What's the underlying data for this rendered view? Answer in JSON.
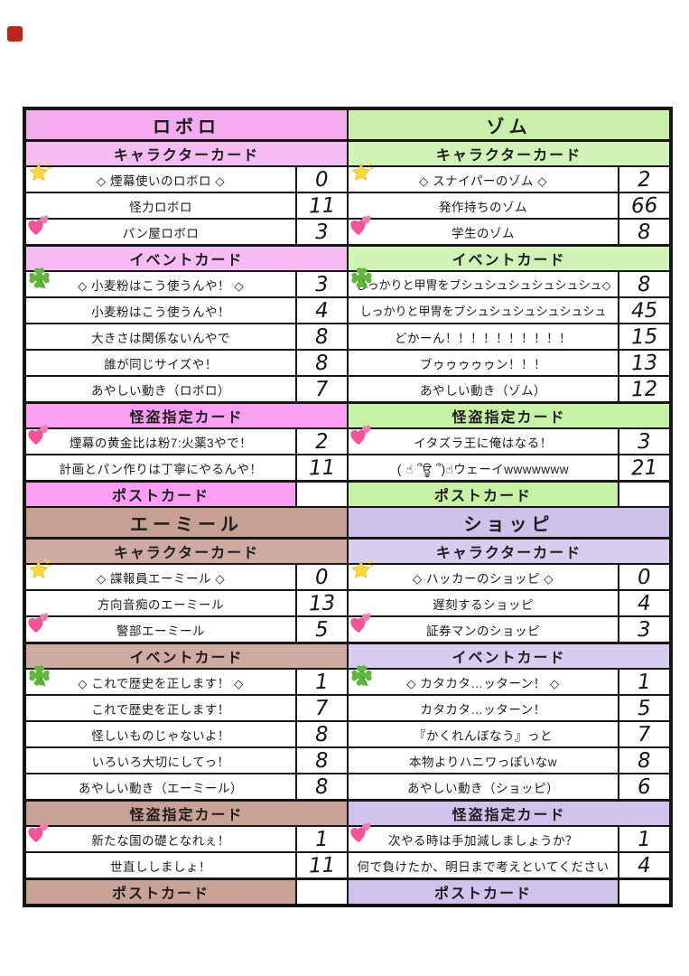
{
  "page": {
    "marker_color": "#b7271d",
    "border_color": "#141414"
  },
  "blocks": [
    {
      "id": "roboro",
      "title": "ロボロ",
      "colors": {
        "title": "#f5abf0",
        "header": "#f8bcf4",
        "strong": "#fb9ef4"
      },
      "sections": [
        {
          "label": "キャラクターカード",
          "tone": "header",
          "rows": [
            {
              "icon": "glowing-star",
              "text": "◇ 煙幕使いのロボロ ◇",
              "count": "0"
            },
            {
              "icon": "",
              "text": "怪力ロボロ",
              "count": "11"
            },
            {
              "icon": "two-hearts",
              "text": "パン屋ロボロ",
              "count": "3"
            }
          ]
        },
        {
          "label": "イベントカード",
          "tone": "header",
          "rows": [
            {
              "icon": "four-leaf-clover",
              "text": "◇ 小麦粉はこう使うんや！ ◇",
              "count": "3"
            },
            {
              "icon": "",
              "text": "小麦粉はこう使うんや！",
              "count": "4"
            },
            {
              "icon": "",
              "text": "大きさは関係ないんやで",
              "count": "8"
            },
            {
              "icon": "",
              "text": "誰が同じサイズや！",
              "count": "8"
            },
            {
              "icon": "",
              "text": "あやしい動き（ロボロ）",
              "count": "7"
            }
          ]
        },
        {
          "label": "怪盗指定カード",
          "tone": "strong",
          "rows": [
            {
              "icon": "two-hearts",
              "text": "煙幕の黄金比は粉7:火薬3やで！",
              "count": "2"
            },
            {
              "icon": "",
              "text": "計画とパン作りは丁寧にやるんや！",
              "count": "11"
            }
          ]
        },
        {
          "label": "ポストカード",
          "tone": "strong",
          "postcard": true,
          "rows": []
        }
      ]
    },
    {
      "id": "zomu",
      "title": "ゾム",
      "colors": {
        "title": "#c9f0ab",
        "header": "#d2f3b8",
        "strong": "#c6f2a6"
      },
      "sections": [
        {
          "label": "キャラクターカード",
          "tone": "header",
          "rows": [
            {
              "icon": "glowing-star",
              "text": "◇ スナイパーのゾム ◇",
              "count": "2"
            },
            {
              "icon": "",
              "text": "発作持ちのゾム",
              "count": "66"
            },
            {
              "icon": "two-hearts",
              "text": "学生のゾム",
              "count": "8"
            }
          ]
        },
        {
          "label": "イベントカード",
          "tone": "header",
          "rows": [
            {
              "icon": "four-leaf-clover",
              "text": "しっかりと甲冑をブシュシュシュシュシュシュ◇",
              "count": "8"
            },
            {
              "icon": "",
              "text": "しっかりと甲冑をブシュシュシュシュシュシュ",
              "count": "45"
            },
            {
              "icon": "",
              "text": "どかーん！！！！！！！！！！",
              "count": "15"
            },
            {
              "icon": "",
              "text": "ブゥゥゥゥゥン！！！",
              "count": "13"
            },
            {
              "icon": "",
              "text": "あやしい動き（ゾム）",
              "count": "12"
            }
          ]
        },
        {
          "label": "怪盗指定カード",
          "tone": "strong",
          "rows": [
            {
              "icon": "two-hearts",
              "text": "イタズラ王に俺はなる！",
              "count": "3"
            },
            {
              "icon": "",
              "text": "( ☝ ՞ਊ ՞)☝ウェーイwwwwwww",
              "count": "21"
            }
          ]
        },
        {
          "label": "ポストカード",
          "tone": "strong",
          "postcard": true,
          "rows": []
        }
      ]
    },
    {
      "id": "emiru",
      "title": "エーミール",
      "colors": {
        "title": "#c6a093",
        "header": "#cfaaa0",
        "strong": "#c9a296"
      },
      "sections": [
        {
          "label": "キャラクターカード",
          "tone": "header",
          "rows": [
            {
              "icon": "glowing-star",
              "text": "◇ 諜報員エーミール ◇",
              "count": "0"
            },
            {
              "icon": "",
              "text": "方向音痴のエーミール",
              "count": "13"
            },
            {
              "icon": "two-hearts",
              "text": "警部エーミール",
              "count": "5"
            }
          ]
        },
        {
          "label": "イベントカード",
          "tone": "header",
          "rows": [
            {
              "icon": "four-leaf-clover",
              "text": "◇ これで歴史を正します！ ◇",
              "count": "1"
            },
            {
              "icon": "",
              "text": "これで歴史を正します！",
              "count": "7"
            },
            {
              "icon": "",
              "text": "怪しいものじゃないよ！",
              "count": "8"
            },
            {
              "icon": "",
              "text": "いろいろ大切にしてっ！",
              "count": "8"
            },
            {
              "icon": "",
              "text": "あやしい動き（エーミール）",
              "count": "8"
            }
          ]
        },
        {
          "label": "怪盗指定カード",
          "tone": "strong",
          "rows": [
            {
              "icon": "two-hearts",
              "text": "新たな国の礎となれぇ！",
              "count": "1"
            },
            {
              "icon": "",
              "text": "世直ししましょ！",
              "count": "11"
            }
          ]
        },
        {
          "label": "ポストカード",
          "tone": "strong",
          "postcard": true,
          "rows": []
        }
      ]
    },
    {
      "id": "shoppi",
      "title": "ショッピ",
      "colors": {
        "title": "#cdc2e9",
        "header": "#d6cdf0",
        "strong": "#cfc3ec"
      },
      "sections": [
        {
          "label": "キャラクターカード",
          "tone": "header",
          "rows": [
            {
              "icon": "glowing-star",
              "text": "◇ ハッカーのショッピ ◇",
              "count": "0"
            },
            {
              "icon": "",
              "text": "遅刻するショッピ",
              "count": "4"
            },
            {
              "icon": "two-hearts",
              "text": "証券マンのショッピ",
              "count": "3"
            }
          ]
        },
        {
          "label": "イベントカード",
          "tone": "header",
          "rows": [
            {
              "icon": "four-leaf-clover",
              "text": "◇ カタカタ…ッターン！ ◇",
              "count": "1"
            },
            {
              "icon": "",
              "text": "カタカタ…ッターン！",
              "count": "5"
            },
            {
              "icon": "",
              "text": "『かくれんぼなう』っと",
              "count": "7"
            },
            {
              "icon": "",
              "text": "本物よりハニワっぽいなw",
              "count": "8"
            },
            {
              "icon": "",
              "text": "あやしい動き（ショッピ）",
              "count": "6"
            }
          ]
        },
        {
          "label": "怪盗指定カード",
          "tone": "strong",
          "rows": [
            {
              "icon": "two-hearts",
              "text": "次やる時は手加減しましょうか？",
              "count": "1"
            },
            {
              "icon": "",
              "text": "何で負けたか、明日まで考えといてください",
              "count": "4"
            }
          ]
        },
        {
          "label": "ポストカード",
          "tone": "strong",
          "postcard": true,
          "rows": []
        }
      ]
    }
  ]
}
